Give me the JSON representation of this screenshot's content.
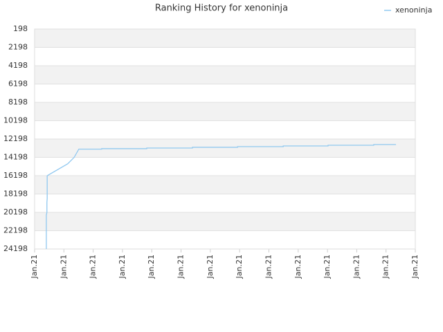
{
  "chart_data": {
    "type": "line",
    "title": "Ranking History for xenoninja",
    "x": [
      0.4,
      0.4,
      0.42,
      0.42,
      0.43,
      0.43,
      1.13,
      1.35,
      1.51,
      2.29,
      2.29,
      3.83,
      3.83,
      5.39,
      5.39,
      6.93,
      6.93,
      8.49,
      8.49,
      10.02,
      10.02,
      11.58,
      11.58,
      12.34
    ],
    "series": [
      {
        "name": "xenoninja",
        "color": "#90c8f0",
        "values": [
          24198,
          20500,
          20200,
          19100,
          18700,
          16200,
          14900,
          14200,
          13300,
          13300,
          13250,
          13250,
          13180,
          13180,
          13100,
          13100,
          13030,
          13030,
          12950,
          12950,
          12880,
          12880,
          12800,
          12800
        ]
      }
    ],
    "xlim": [
      0,
      13
    ],
    "xticks": [
      {
        "value": 0,
        "label": "Jan.21"
      },
      {
        "value": 1,
        "label": "Jan.21"
      },
      {
        "value": 2,
        "label": "Jan.21"
      },
      {
        "value": 3,
        "label": "Jan.21"
      },
      {
        "value": 4,
        "label": "Jan.21"
      },
      {
        "value": 5,
        "label": "Jan.21"
      },
      {
        "value": 6,
        "label": "Jan.21"
      },
      {
        "value": 7,
        "label": "Jan.21"
      },
      {
        "value": 8,
        "label": "Jan.21"
      },
      {
        "value": 9,
        "label": "Jan.21"
      },
      {
        "value": 10,
        "label": "Jan.21"
      },
      {
        "value": 11,
        "label": "Jan.21"
      },
      {
        "value": 12,
        "label": "Jan.21"
      },
      {
        "value": 13,
        "label": "Jan.21"
      }
    ],
    "ylim": [
      198,
      24198
    ],
    "yticks": [
      198,
      2198,
      4198,
      6198,
      8198,
      10198,
      12198,
      14198,
      16198,
      18198,
      20198,
      22198,
      24198
    ],
    "y_inverted": true,
    "grid": true,
    "banded": true,
    "legend": "top-right"
  }
}
